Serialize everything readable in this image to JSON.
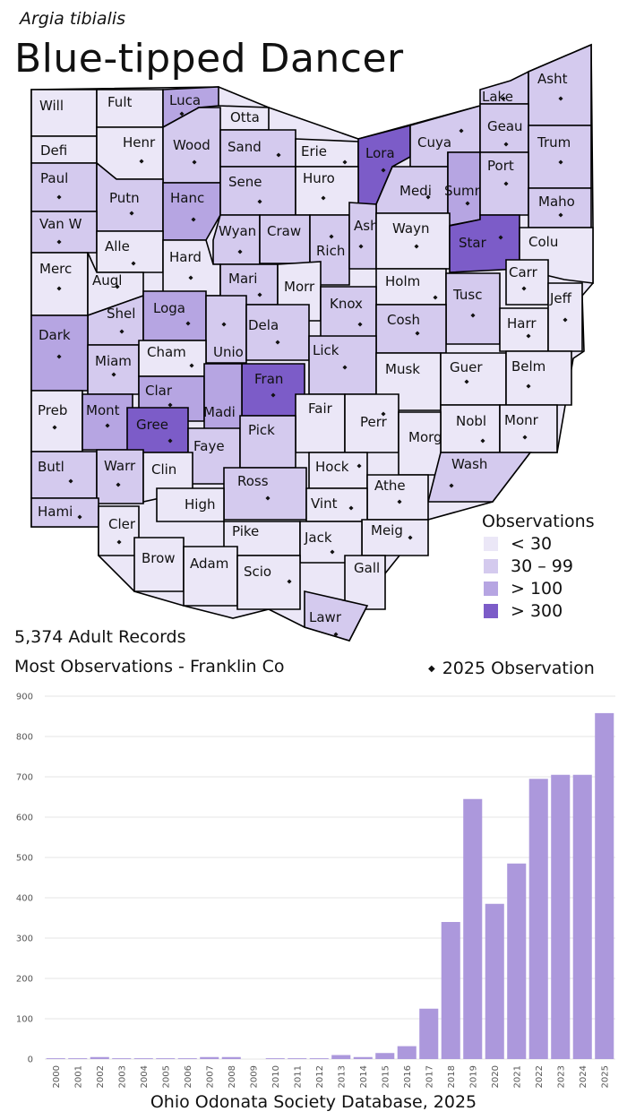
{
  "header": {
    "scientific_name": "Argia tibialis",
    "common_name": "Blue-tipped Dancer"
  },
  "stats": {
    "records": "5,374 Adult Records",
    "most": "Most Observations - Franklin Co",
    "dot_legend": "2025  Observation",
    "dot_symbol": "◆"
  },
  "legend": {
    "title": "Observations",
    "items": [
      {
        "label": "< 30",
        "color": "#ebe7f7"
      },
      {
        "label": "30 – 99",
        "color": "#d4caee"
      },
      {
        "label": "> 100",
        "color": "#b6a5e2"
      },
      {
        "label": "> 300",
        "color": "#7c5cc8"
      }
    ]
  },
  "counties": [
    {
      "name": "Will",
      "tier": 0,
      "dot": false
    },
    {
      "name": "Fult",
      "tier": 0,
      "dot": false
    },
    {
      "name": "Luca",
      "tier": 2,
      "dot": true
    },
    {
      "name": "Otta",
      "tier": 0,
      "dot": false
    },
    {
      "name": "Lake",
      "tier": 1,
      "dot": true
    },
    {
      "name": "Asht",
      "tier": 1,
      "dot": true
    },
    {
      "name": "Defi",
      "tier": 0,
      "dot": false
    },
    {
      "name": "Henr",
      "tier": 0,
      "dot": true
    },
    {
      "name": "Wood",
      "tier": 1,
      "dot": true
    },
    {
      "name": "Sand",
      "tier": 1,
      "dot": true
    },
    {
      "name": "Erie",
      "tier": 0,
      "dot": true
    },
    {
      "name": "Lora",
      "tier": 3,
      "dot": true
    },
    {
      "name": "Cuya",
      "tier": 1,
      "dot": true
    },
    {
      "name": "Geau",
      "tier": 1,
      "dot": true
    },
    {
      "name": "Trum",
      "tier": 1,
      "dot": true
    },
    {
      "name": "Paul",
      "tier": 1,
      "dot": true
    },
    {
      "name": "Putn",
      "tier": 1,
      "dot": true
    },
    {
      "name": "Hanc",
      "tier": 2,
      "dot": true
    },
    {
      "name": "Sene",
      "tier": 1,
      "dot": true
    },
    {
      "name": "Huro",
      "tier": 0,
      "dot": true
    },
    {
      "name": "Medi",
      "tier": 1,
      "dot": true
    },
    {
      "name": "Summ",
      "tier": 2,
      "dot": true
    },
    {
      "name": "Port",
      "tier": 1,
      "dot": true
    },
    {
      "name": "Maho",
      "tier": 1,
      "dot": true
    },
    {
      "name": "Van W",
      "tier": 1,
      "dot": true
    },
    {
      "name": "Alle",
      "tier": 0,
      "dot": true
    },
    {
      "name": "Wyan",
      "tier": 1,
      "dot": true
    },
    {
      "name": "Craw",
      "tier": 1,
      "dot": false
    },
    {
      "name": "Rich",
      "tier": 1,
      "dot": true
    },
    {
      "name": "Ashl",
      "tier": 1,
      "dot": true
    },
    {
      "name": "Wayn",
      "tier": 0,
      "dot": true
    },
    {
      "name": "Star",
      "tier": 3,
      "dot": true
    },
    {
      "name": "Colu",
      "tier": 0,
      "dot": false
    },
    {
      "name": "Merc",
      "tier": 0,
      "dot": true
    },
    {
      "name": "Augl",
      "tier": 0,
      "dot": true
    },
    {
      "name": "Hard",
      "tier": 0,
      "dot": true
    },
    {
      "name": "Mari",
      "tier": 1,
      "dot": true
    },
    {
      "name": "Morr",
      "tier": 0,
      "dot": false
    },
    {
      "name": "Holm",
      "tier": 0,
      "dot": true
    },
    {
      "name": "Carr",
      "tier": 0,
      "dot": true
    },
    {
      "name": "Shel",
      "tier": 1,
      "dot": true
    },
    {
      "name": "Loga",
      "tier": 2,
      "dot": true
    },
    {
      "name": "Unio",
      "tier": 1,
      "dot": true
    },
    {
      "name": "Dela",
      "tier": 1,
      "dot": true
    },
    {
      "name": "Knox",
      "tier": 1,
      "dot": true
    },
    {
      "name": "Tusc",
      "tier": 1,
      "dot": true
    },
    {
      "name": "Harr",
      "tier": 0,
      "dot": true
    },
    {
      "name": "Jeff",
      "tier": 0,
      "dot": true
    },
    {
      "name": "Cosh",
      "tier": 1,
      "dot": true
    },
    {
      "name": "Dark",
      "tier": 2,
      "dot": true
    },
    {
      "name": "Miam",
      "tier": 1,
      "dot": true
    },
    {
      "name": "Cham",
      "tier": 0,
      "dot": true
    },
    {
      "name": "Lick",
      "tier": 1,
      "dot": true
    },
    {
      "name": "Musk",
      "tier": 0,
      "dot": false
    },
    {
      "name": "Guer",
      "tier": 0,
      "dot": true
    },
    {
      "name": "Belm",
      "tier": 0,
      "dot": true
    },
    {
      "name": "Clar",
      "tier": 2,
      "dot": true
    },
    {
      "name": "Fran",
      "tier": 3,
      "dot": true
    },
    {
      "name": "Madi",
      "tier": 2,
      "dot": false
    },
    {
      "name": "Preb",
      "tier": 0,
      "dot": true
    },
    {
      "name": "Mont",
      "tier": 2,
      "dot": true
    },
    {
      "name": "Gree",
      "tier": 3,
      "dot": true
    },
    {
      "name": "Fair",
      "tier": 0,
      "dot": false
    },
    {
      "name": "Perr",
      "tier": 0,
      "dot": true
    },
    {
      "name": "Nobl",
      "tier": 0,
      "dot": true
    },
    {
      "name": "Monr",
      "tier": 0,
      "dot": true
    },
    {
      "name": "Faye",
      "tier": 1,
      "dot": false
    },
    {
      "name": "Pick",
      "tier": 1,
      "dot": false
    },
    {
      "name": "Morg",
      "tier": 0,
      "dot": false
    },
    {
      "name": "Butl",
      "tier": 1,
      "dot": true
    },
    {
      "name": "Warr",
      "tier": 1,
      "dot": true
    },
    {
      "name": "Clin",
      "tier": 0,
      "dot": false
    },
    {
      "name": "Hock",
      "tier": 0,
      "dot": true
    },
    {
      "name": "Wash",
      "tier": 1,
      "dot": true
    },
    {
      "name": "Ross",
      "tier": 1,
      "dot": true
    },
    {
      "name": "Athe",
      "tier": 0,
      "dot": true
    },
    {
      "name": "Hami",
      "tier": 1,
      "dot": true
    },
    {
      "name": "High",
      "tier": 0,
      "dot": false
    },
    {
      "name": "Vint",
      "tier": 0,
      "dot": true
    },
    {
      "name": "Cler",
      "tier": 0,
      "dot": true
    },
    {
      "name": "Meig",
      "tier": 0,
      "dot": true
    },
    {
      "name": "Pike",
      "tier": 0,
      "dot": false
    },
    {
      "name": "Jack",
      "tier": 0,
      "dot": true
    },
    {
      "name": "Brow",
      "tier": 0,
      "dot": false
    },
    {
      "name": "Adam",
      "tier": 0,
      "dot": false
    },
    {
      "name": "Scio",
      "tier": 0,
      "dot": true
    },
    {
      "name": "Gall",
      "tier": 0,
      "dot": false
    },
    {
      "name": "Lawr",
      "tier": 1,
      "dot": true
    }
  ],
  "chart_data": {
    "type": "bar",
    "categories": [
      "2000",
      "2001",
      "2002",
      "2003",
      "2004",
      "2005",
      "2006",
      "2007",
      "2008",
      "2009",
      "2010",
      "2011",
      "2012",
      "2013",
      "2014",
      "2015",
      "2016",
      "2017",
      "2018",
      "2019",
      "2020",
      "2021",
      "2022",
      "2023",
      "2024",
      "2025"
    ],
    "values": [
      2,
      2,
      5,
      2,
      2,
      2,
      2,
      5,
      5,
      0,
      2,
      2,
      2,
      10,
      5,
      15,
      32,
      125,
      340,
      645,
      385,
      485,
      695,
      705,
      705,
      858
    ],
    "ylim": [
      0,
      900
    ],
    "yticks": [
      "0",
      "100",
      "200",
      "300",
      "400",
      "500",
      "600",
      "700",
      "800",
      "900"
    ],
    "bar_color": "#ac98dc",
    "grid": true
  },
  "footer": {
    "source": "Ohio Odonata Society Database, 2025"
  }
}
